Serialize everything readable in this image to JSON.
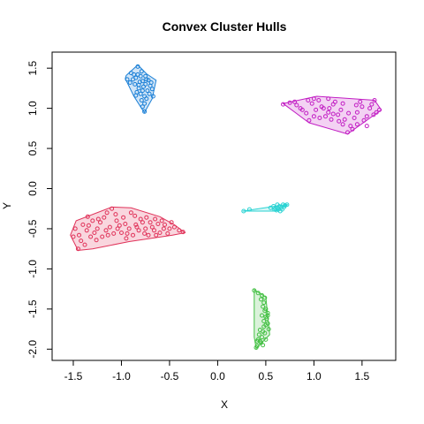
{
  "chart_data": {
    "type": "scatter",
    "title": "Convex Cluster Hulls",
    "xlabel": "X",
    "ylabel": "Y",
    "xlim": [
      -1.72,
      1.85
    ],
    "ylim": [
      -2.14,
      1.7
    ],
    "xticks": [
      -1.5,
      -1.0,
      -0.5,
      0.0,
      0.5,
      1.0,
      1.5
    ],
    "xtick_labels": [
      "-1.5",
      "-1.0",
      "-0.5",
      "0.0",
      "0.5",
      "1.0",
      "1.5"
    ],
    "yticks": [
      -2.0,
      -1.5,
      -1.0,
      -0.5,
      0.0,
      0.5,
      1.0,
      1.5
    ],
    "ytick_labels": [
      "-2.0",
      "-1.5",
      "-1.0",
      "-0.5",
      "0.0",
      "0.5",
      "1.0",
      "1.5"
    ],
    "grid": false,
    "series": [
      {
        "color": "#1a7fd6",
        "hull": [
          [
            -0.83,
            1.54
          ],
          [
            -0.74,
            1.43
          ],
          [
            -0.64,
            1.35
          ],
          [
            -0.68,
            1.12
          ],
          [
            -0.76,
            0.95
          ],
          [
            -0.78,
            0.98
          ],
          [
            -0.87,
            1.15
          ],
          [
            -0.96,
            1.37
          ],
          [
            -0.95,
            1.41
          ]
        ],
        "points": [
          [
            -0.83,
            1.52
          ],
          [
            -0.79,
            1.46
          ],
          [
            -0.75,
            1.4
          ],
          [
            -0.69,
            1.32
          ],
          [
            -0.67,
            1.15
          ],
          [
            -0.76,
            0.96
          ],
          [
            -0.78,
            1.02
          ],
          [
            -0.85,
            1.16
          ],
          [
            -0.94,
            1.36
          ],
          [
            -0.9,
            1.44
          ],
          [
            -0.85,
            1.38
          ],
          [
            -0.81,
            1.33
          ],
          [
            -0.77,
            1.27
          ],
          [
            -0.73,
            1.22
          ],
          [
            -0.7,
            1.28
          ],
          [
            -0.72,
            1.35
          ],
          [
            -0.78,
            1.22
          ],
          [
            -0.82,
            1.25
          ],
          [
            -0.86,
            1.3
          ],
          [
            -0.88,
            1.36
          ],
          [
            -0.8,
            1.4
          ],
          [
            -0.75,
            1.3
          ],
          [
            -0.71,
            1.18
          ],
          [
            -0.74,
            1.12
          ],
          [
            -0.79,
            1.1
          ],
          [
            -0.76,
            1.06
          ],
          [
            -0.83,
            1.42
          ],
          [
            -0.87,
            1.42
          ],
          [
            -0.91,
            1.32
          ],
          [
            -0.84,
            1.2
          ],
          [
            -0.8,
            1.18
          ],
          [
            -0.68,
            1.24
          ],
          [
            -0.74,
            1.36
          ],
          [
            -0.78,
            1.34
          ],
          [
            -0.82,
            1.29
          ],
          [
            -0.76,
            1.15
          ]
        ]
      },
      {
        "color": "#c21fc4",
        "hull": [
          [
            0.68,
            1.06
          ],
          [
            1.03,
            1.15
          ],
          [
            1.63,
            1.1
          ],
          [
            1.7,
            0.98
          ],
          [
            1.35,
            0.68
          ],
          [
            0.95,
            0.82
          ]
        ],
        "points": [
          [
            0.68,
            1.05
          ],
          [
            0.75,
            1.07
          ],
          [
            0.82,
            1.04
          ],
          [
            0.88,
            0.98
          ],
          [
            0.95,
            0.85
          ],
          [
            1.0,
            0.9
          ],
          [
            1.05,
            1.1
          ],
          [
            1.1,
            1.0
          ],
          [
            1.15,
            0.95
          ],
          [
            1.2,
            1.05
          ],
          [
            1.25,
            0.92
          ],
          [
            1.3,
            0.8
          ],
          [
            1.35,
            0.7
          ],
          [
            1.38,
            0.78
          ],
          [
            1.42,
            0.88
          ],
          [
            1.45,
            0.95
          ],
          [
            1.5,
            1.02
          ],
          [
            1.55,
            0.9
          ],
          [
            1.6,
            1.05
          ],
          [
            1.63,
            1.1
          ],
          [
            1.68,
            0.98
          ],
          [
            1.65,
            0.95
          ],
          [
            1.58,
            1.0
          ],
          [
            1.52,
            0.85
          ],
          [
            1.45,
            0.8
          ],
          [
            1.4,
            0.74
          ],
          [
            1.32,
            0.86
          ],
          [
            1.28,
            0.98
          ],
          [
            1.22,
            1.08
          ],
          [
            1.18,
            0.86
          ],
          [
            1.12,
            0.9
          ],
          [
            1.08,
            1.02
          ],
          [
            1.02,
            0.98
          ],
          [
            0.98,
            1.06
          ],
          [
            0.92,
            0.94
          ],
          [
            0.86,
            1.0
          ],
          [
            0.8,
            1.08
          ],
          [
            1.0,
            1.12
          ],
          [
            1.15,
            1.12
          ],
          [
            1.3,
            1.06
          ],
          [
            1.48,
            1.08
          ],
          [
            1.36,
            0.94
          ],
          [
            1.26,
            0.84
          ],
          [
            1.16,
            1.0
          ],
          [
            1.06,
            0.88
          ],
          [
            1.55,
            0.78
          ],
          [
            1.62,
            0.92
          ],
          [
            1.44,
            1.04
          ],
          [
            1.2,
            0.93
          ],
          [
            0.94,
            1.1
          ]
        ]
      },
      {
        "color": "#e0335a",
        "hull": [
          [
            -1.45,
            -0.77
          ],
          [
            -1.53,
            -0.58
          ],
          [
            -1.47,
            -0.4
          ],
          [
            -1.1,
            -0.23
          ],
          [
            -0.9,
            -0.24
          ],
          [
            -0.6,
            -0.35
          ],
          [
            -0.45,
            -0.45
          ],
          [
            -0.34,
            -0.55
          ],
          [
            -0.47,
            -0.58
          ],
          [
            -0.92,
            -0.66
          ],
          [
            -1.3,
            -0.75
          ]
        ],
        "points": [
          [
            -1.45,
            -0.75
          ],
          [
            -1.5,
            -0.6
          ],
          [
            -1.48,
            -0.5
          ],
          [
            -1.4,
            -0.45
          ],
          [
            -1.35,
            -0.35
          ],
          [
            -1.3,
            -0.4
          ],
          [
            -1.25,
            -0.5
          ],
          [
            -1.2,
            -0.6
          ],
          [
            -1.15,
            -0.3
          ],
          [
            -1.1,
            -0.25
          ],
          [
            -1.05,
            -0.4
          ],
          [
            -1.0,
            -0.55
          ],
          [
            -0.95,
            -0.62
          ],
          [
            -0.9,
            -0.3
          ],
          [
            -0.85,
            -0.45
          ],
          [
            -0.8,
            -0.38
          ],
          [
            -0.75,
            -0.5
          ],
          [
            -0.7,
            -0.42
          ],
          [
            -0.65,
            -0.38
          ],
          [
            -0.6,
            -0.55
          ],
          [
            -0.55,
            -0.45
          ],
          [
            -0.5,
            -0.5
          ],
          [
            -0.45,
            -0.48
          ],
          [
            -0.4,
            -0.52
          ],
          [
            -0.36,
            -0.54
          ],
          [
            -1.42,
            -0.65
          ],
          [
            -1.38,
            -0.7
          ],
          [
            -1.32,
            -0.6
          ],
          [
            -1.28,
            -0.55
          ],
          [
            -1.22,
            -0.42
          ],
          [
            -1.18,
            -0.36
          ],
          [
            -1.12,
            -0.48
          ],
          [
            -1.08,
            -0.56
          ],
          [
            -1.02,
            -0.46
          ],
          [
            -0.98,
            -0.36
          ],
          [
            -0.92,
            -0.5
          ],
          [
            -0.88,
            -0.58
          ],
          [
            -0.82,
            -0.52
          ],
          [
            -0.78,
            -0.42
          ],
          [
            -0.72,
            -0.58
          ],
          [
            -0.68,
            -0.48
          ],
          [
            -0.62,
            -0.44
          ],
          [
            -0.58,
            -0.4
          ],
          [
            -0.52,
            -0.56
          ],
          [
            -0.48,
            -0.42
          ],
          [
            -1.36,
            -0.52
          ],
          [
            -1.26,
            -0.64
          ],
          [
            -1.16,
            -0.52
          ],
          [
            -1.06,
            -0.32
          ],
          [
            -0.96,
            -0.44
          ],
          [
            -0.86,
            -0.34
          ],
          [
            -0.76,
            -0.56
          ],
          [
            -0.66,
            -0.52
          ],
          [
            -0.56,
            -0.5
          ],
          [
            -1.44,
            -0.58
          ],
          [
            -1.34,
            -0.46
          ],
          [
            -1.24,
            -0.38
          ],
          [
            -1.14,
            -0.58
          ],
          [
            -1.04,
            -0.5
          ],
          [
            -0.94,
            -0.56
          ],
          [
            -0.84,
            -0.48
          ],
          [
            -0.74,
            -0.36
          ],
          [
            -0.64,
            -0.58
          ]
        ]
      },
      {
        "color": "#2ad3d3",
        "hull": [
          [
            0.26,
            -0.28
          ],
          [
            0.7,
            -0.2
          ],
          [
            0.73,
            -0.2
          ],
          [
            0.6,
            -0.28
          ]
        ],
        "points": [
          [
            0.27,
            -0.28
          ],
          [
            0.33,
            -0.26
          ],
          [
            0.55,
            -0.24
          ],
          [
            0.58,
            -0.22
          ],
          [
            0.6,
            -0.25
          ],
          [
            0.62,
            -0.2
          ],
          [
            0.64,
            -0.22
          ],
          [
            0.66,
            -0.24
          ],
          [
            0.68,
            -0.2
          ],
          [
            0.7,
            -0.21
          ],
          [
            0.72,
            -0.2
          ],
          [
            0.61,
            -0.27
          ],
          [
            0.63,
            -0.26
          ],
          [
            0.65,
            -0.28
          ],
          [
            0.67,
            -0.26
          ],
          [
            0.69,
            -0.23
          ],
          [
            0.59,
            -0.26
          ],
          [
            0.62,
            -0.24
          ]
        ]
      },
      {
        "color": "#44c044",
        "hull": [
          [
            0.38,
            -1.26
          ],
          [
            0.5,
            -1.35
          ],
          [
            0.54,
            -1.82
          ],
          [
            0.4,
            -1.99
          ],
          [
            0.38,
            -1.85
          ]
        ],
        "points": [
          [
            0.38,
            -1.27
          ],
          [
            0.42,
            -1.3
          ],
          [
            0.46,
            -1.33
          ],
          [
            0.49,
            -1.36
          ],
          [
            0.48,
            -1.42
          ],
          [
            0.5,
            -1.5
          ],
          [
            0.52,
            -1.55
          ],
          [
            0.51,
            -1.62
          ],
          [
            0.5,
            -1.7
          ],
          [
            0.53,
            -1.75
          ],
          [
            0.49,
            -1.8
          ],
          [
            0.46,
            -1.85
          ],
          [
            0.44,
            -1.9
          ],
          [
            0.41,
            -1.96
          ],
          [
            0.4,
            -1.98
          ],
          [
            0.42,
            -1.88
          ],
          [
            0.47,
            -1.78
          ],
          [
            0.48,
            -1.65
          ],
          [
            0.46,
            -1.58
          ],
          [
            0.47,
            -1.47
          ],
          [
            0.45,
            -1.38
          ],
          [
            0.43,
            -1.82
          ],
          [
            0.45,
            -1.92
          ],
          [
            0.5,
            -1.88
          ],
          [
            0.52,
            -1.58
          ],
          [
            0.49,
            -1.52
          ],
          [
            0.48,
            -1.72
          ],
          [
            0.44,
            -1.76
          ],
          [
            0.41,
            -1.9
          ],
          [
            0.47,
            -1.95
          ],
          [
            0.5,
            -1.6
          ],
          [
            0.52,
            -1.68
          ]
        ]
      }
    ]
  }
}
